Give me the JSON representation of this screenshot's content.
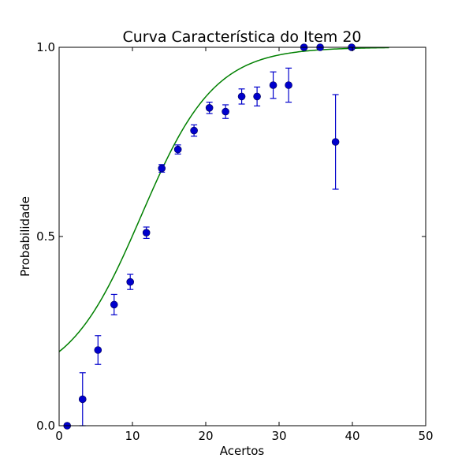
{
  "chart_data": {
    "type": "scatter",
    "title": "Curva Característica do Item 20",
    "xlabel": "Acertos",
    "ylabel": "Probabilidade",
    "xlim": [
      0,
      50
    ],
    "ylim": [
      0,
      1
    ],
    "xticks": [
      "0",
      "10",
      "20",
      "30",
      "40",
      "50"
    ],
    "yticks": [
      "0.0",
      "0.5",
      "1.0"
    ],
    "grid": false,
    "colors": {
      "points": "#0000cc",
      "errorbars": "#0000cc",
      "curve": "#008000"
    },
    "points": [
      {
        "x": 1.1,
        "y": 0.0,
        "err": 0.0
      },
      {
        "x": 3.2,
        "y": 0.07,
        "err": 0.07
      },
      {
        "x": 5.3,
        "y": 0.2,
        "err": 0.038
      },
      {
        "x": 7.5,
        "y": 0.32,
        "err": 0.027
      },
      {
        "x": 9.7,
        "y": 0.38,
        "err": 0.02
      },
      {
        "x": 11.9,
        "y": 0.51,
        "err": 0.015
      },
      {
        "x": 14.0,
        "y": 0.68,
        "err": 0.01
      },
      {
        "x": 16.2,
        "y": 0.73,
        "err": 0.012
      },
      {
        "x": 18.4,
        "y": 0.78,
        "err": 0.015
      },
      {
        "x": 20.5,
        "y": 0.84,
        "err": 0.015
      },
      {
        "x": 22.7,
        "y": 0.83,
        "err": 0.018
      },
      {
        "x": 24.9,
        "y": 0.87,
        "err": 0.02
      },
      {
        "x": 27.0,
        "y": 0.87,
        "err": 0.025
      },
      {
        "x": 29.2,
        "y": 0.9,
        "err": 0.035
      },
      {
        "x": 31.3,
        "y": 0.9,
        "err": 0.045
      },
      {
        "x": 33.4,
        "y": 1.0,
        "err": 0.0
      },
      {
        "x": 35.6,
        "y": 1.0,
        "err": 0.0
      },
      {
        "x": 37.7,
        "y": 0.75,
        "err": 0.125
      },
      {
        "x": 39.9,
        "y": 1.0,
        "err": 0.0
      }
    ],
    "curve": {
      "type": "logistic",
      "x_range": [
        0,
        45
      ],
      "lower_asymptote": 0.11,
      "slope": 0.2,
      "midpoint": 11.2
    }
  }
}
